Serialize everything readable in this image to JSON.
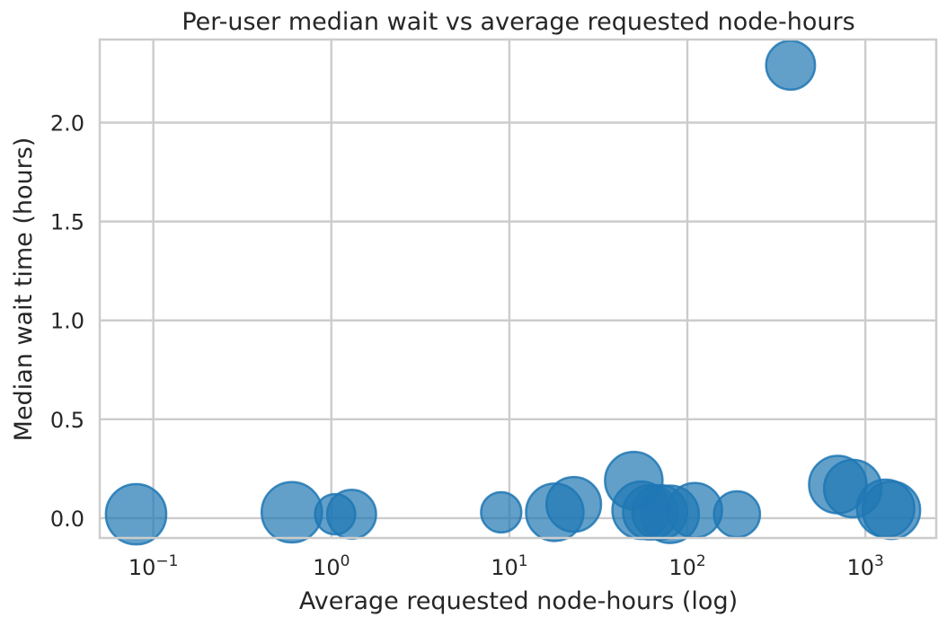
{
  "chart_data": {
    "type": "scatter",
    "title": "Per-user median wait vs average requested node-hours",
    "xlabel": "Average requested node-hours (log)",
    "ylabel": "Median wait time (hours)",
    "xscale": "log",
    "xlim": [
      0.05,
      2500
    ],
    "ylim": [
      -0.1,
      2.42
    ],
    "xticks": [
      {
        "value": 0.1,
        "base": "10",
        "exp": "−1"
      },
      {
        "value": 1,
        "base": "10",
        "exp": "0"
      },
      {
        "value": 10,
        "base": "10",
        "exp": "1"
      },
      {
        "value": 100,
        "base": "10",
        "exp": "2"
      },
      {
        "value": 1000,
        "base": "10",
        "exp": "3"
      }
    ],
    "yticks": [
      {
        "value": 0.0,
        "label": "0.0"
      },
      {
        "value": 0.5,
        "label": "0.5"
      },
      {
        "value": 1.0,
        "label": "1.0"
      },
      {
        "value": 1.5,
        "label": "1.5"
      },
      {
        "value": 2.0,
        "label": "2.0"
      }
    ],
    "grid": true,
    "color": "#1f77b4",
    "points": [
      {
        "x": 0.08,
        "y": 0.02,
        "size": 42
      },
      {
        "x": 0.6,
        "y": 0.03,
        "size": 42
      },
      {
        "x": 1.3,
        "y": 0.02,
        "size": 34
      },
      {
        "x": 1.05,
        "y": 0.02,
        "size": 28
      },
      {
        "x": 9,
        "y": 0.03,
        "size": 28
      },
      {
        "x": 18,
        "y": 0.03,
        "size": 40
      },
      {
        "x": 23,
        "y": 0.07,
        "size": 38
      },
      {
        "x": 50,
        "y": 0.19,
        "size": 40
      },
      {
        "x": 55,
        "y": 0.04,
        "size": 40
      },
      {
        "x": 62,
        "y": 0.03,
        "size": 38
      },
      {
        "x": 70,
        "y": 0.03,
        "size": 38
      },
      {
        "x": 80,
        "y": 0.02,
        "size": 40
      },
      {
        "x": 110,
        "y": 0.04,
        "size": 38
      },
      {
        "x": 190,
        "y": 0.02,
        "size": 32
      },
      {
        "x": 380,
        "y": 2.29,
        "size": 34
      },
      {
        "x": 700,
        "y": 0.17,
        "size": 40
      },
      {
        "x": 850,
        "y": 0.15,
        "size": 40
      },
      {
        "x": 1300,
        "y": 0.05,
        "size": 40
      },
      {
        "x": 1400,
        "y": 0.04,
        "size": 40
      }
    ]
  }
}
